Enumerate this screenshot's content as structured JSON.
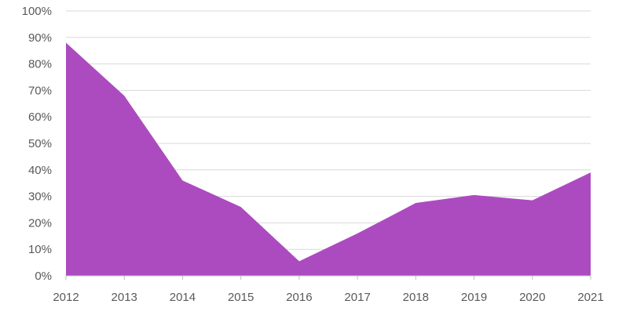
{
  "chart_data": {
    "type": "area",
    "title": "",
    "xlabel": "",
    "ylabel": "",
    "x": [
      2012,
      2013,
      2014,
      2015,
      2016,
      2017,
      2018,
      2019,
      2020,
      2021
    ],
    "series": [
      {
        "values": [
          88,
          68,
          36,
          26,
          5.5,
          16,
          27.5,
          30.5,
          28.5,
          39
        ],
        "color": "#ac4bbf"
      }
    ],
    "ylim": [
      0,
      100
    ],
    "y_ticks": [
      0,
      10,
      20,
      30,
      40,
      50,
      60,
      70,
      80,
      90,
      100
    ],
    "y_tick_labels": [
      "0%",
      "10%",
      "20%",
      "30%",
      "40%",
      "50%",
      "60%",
      "70%",
      "80%",
      "90%",
      "100%"
    ],
    "x_tick_labels": [
      "2012",
      "2013",
      "2014",
      "2015",
      "2016",
      "2017",
      "2018",
      "2019",
      "2020",
      "2021"
    ],
    "grid": true,
    "legend": "none"
  },
  "colors": {
    "area_fill": "#ac4bbf",
    "grid": "#d9d9d9",
    "axis": "#bfbfbf",
    "tick_text": "#595959"
  }
}
